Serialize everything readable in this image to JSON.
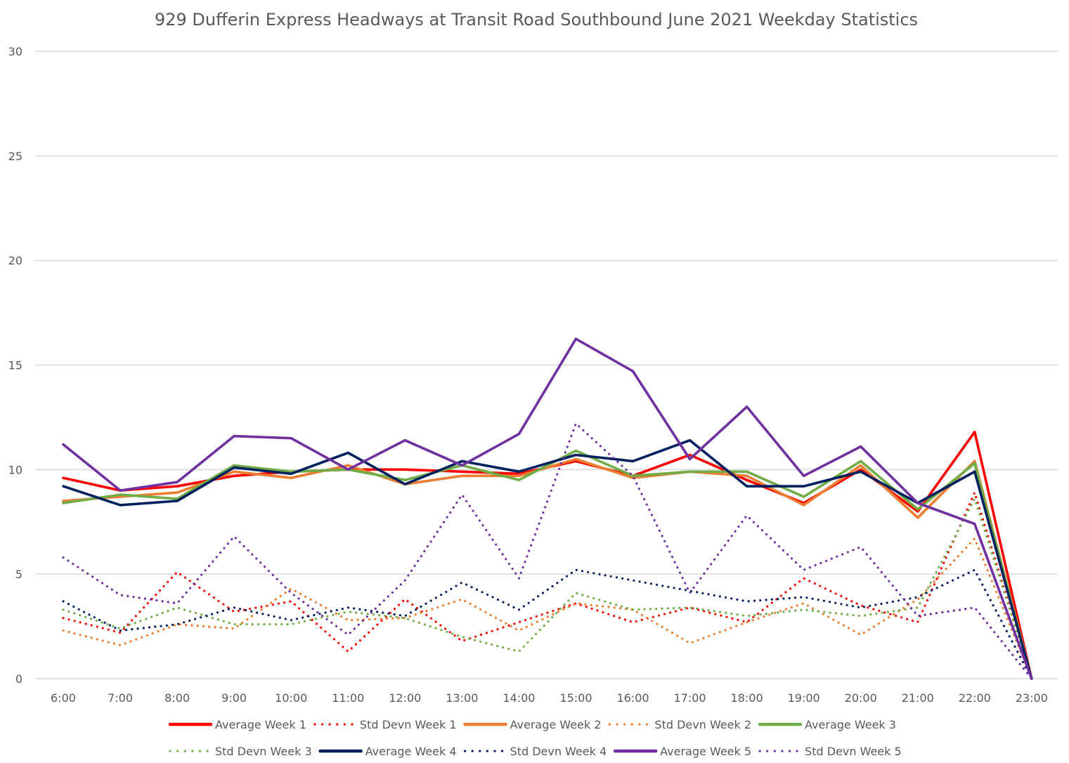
{
  "chart_data": {
    "type": "line",
    "title": "929 Dufferin Express Headways at Transit Road Southbound June 2021 Weekday Statistics",
    "xlabel": "",
    "ylabel": "",
    "ylim": [
      0,
      30
    ],
    "yticks": [
      "0",
      "5",
      "10",
      "15",
      "20",
      "25",
      "30"
    ],
    "ytick_values": [
      0,
      5,
      10,
      15,
      20,
      25,
      30
    ],
    "grid": true,
    "legend_position": "bottom",
    "categories": [
      "6:00",
      "7:00",
      "8:00",
      "9:00",
      "10:00",
      "11:00",
      "12:00",
      "13:00",
      "14:00",
      "15:00",
      "16:00",
      "17:00",
      "18:00",
      "19:00",
      "20:00",
      "21:00",
      "22:00",
      "23:00"
    ],
    "series": [
      {
        "name": "Average Week 1",
        "color": "#ff0000",
        "style": "solid",
        "values": [
          9.6,
          9.0,
          9.2,
          9.7,
          9.9,
          10.0,
          10.0,
          9.9,
          9.8,
          10.4,
          9.7,
          10.7,
          9.5,
          8.4,
          10.0,
          8.0,
          11.8,
          0
        ]
      },
      {
        "name": "Std Devn Week 1",
        "color": "#ff0000",
        "style": "dotted",
        "values": [
          2.9,
          2.2,
          5.1,
          3.2,
          3.7,
          1.3,
          3.8,
          1.8,
          2.7,
          3.6,
          2.7,
          3.4,
          2.7,
          4.8,
          3.5,
          2.7,
          8.9,
          0
        ]
      },
      {
        "name": "Average Week 2",
        "color": "#ed7d31",
        "style": "solid",
        "values": [
          8.5,
          8.7,
          8.9,
          9.9,
          9.6,
          10.2,
          9.3,
          9.7,
          9.7,
          10.5,
          9.6,
          9.9,
          9.7,
          8.3,
          10.2,
          7.7,
          10.4,
          0
        ]
      },
      {
        "name": "Std Devn Week 2",
        "color": "#ed7d31",
        "style": "dotted",
        "values": [
          2.3,
          1.6,
          2.6,
          2.4,
          4.3,
          2.8,
          2.9,
          3.8,
          2.3,
          3.6,
          3.3,
          1.7,
          2.7,
          3.6,
          2.1,
          3.8,
          6.7,
          0
        ]
      },
      {
        "name": "Average Week 3",
        "color": "#70ad47",
        "style": "solid",
        "values": [
          8.4,
          8.8,
          8.6,
          10.2,
          9.9,
          10.0,
          9.5,
          10.2,
          9.5,
          10.9,
          9.7,
          9.9,
          9.9,
          8.7,
          10.4,
          8.1,
          10.3,
          0
        ]
      },
      {
        "name": "Std Devn Week 3",
        "color": "#70ad47",
        "style": "dotted",
        "values": [
          3.3,
          2.4,
          3.4,
          2.6,
          2.6,
          3.2,
          2.9,
          2.0,
          1.3,
          4.1,
          3.3,
          3.4,
          3.0,
          3.3,
          3.0,
          3.4,
          8.6,
          0
        ]
      },
      {
        "name": "Average Week 4",
        "color": "#002060",
        "style": "solid",
        "values": [
          9.2,
          8.3,
          8.5,
          10.1,
          9.8,
          10.8,
          9.3,
          10.4,
          9.9,
          10.7,
          10.4,
          11.4,
          9.2,
          9.2,
          9.9,
          8.4,
          9.9,
          0
        ]
      },
      {
        "name": "Std Devn Week 4",
        "color": "#002060",
        "style": "dotted",
        "values": [
          3.7,
          2.3,
          2.6,
          3.4,
          2.8,
          3.4,
          3.0,
          4.6,
          3.3,
          5.2,
          4.7,
          4.2,
          3.7,
          3.9,
          3.4,
          3.9,
          5.2,
          0
        ]
      },
      {
        "name": "Average Week 5",
        "color": "#7030a0",
        "style": "solid",
        "values": [
          11.2,
          9.0,
          9.4,
          11.6,
          11.5,
          10.0,
          11.4,
          10.2,
          11.7,
          16.25,
          14.7,
          10.5,
          13.0,
          9.7,
          11.1,
          8.4,
          7.4,
          0
        ]
      },
      {
        "name": "Std Devn Week 5",
        "color": "#7030a0",
        "style": "dotted",
        "values": [
          5.8,
          4.0,
          3.6,
          6.8,
          4.1,
          2.1,
          4.7,
          8.8,
          4.8,
          12.2,
          9.7,
          4.1,
          7.8,
          5.2,
          6.3,
          3.0,
          3.4,
          0
        ]
      }
    ]
  }
}
